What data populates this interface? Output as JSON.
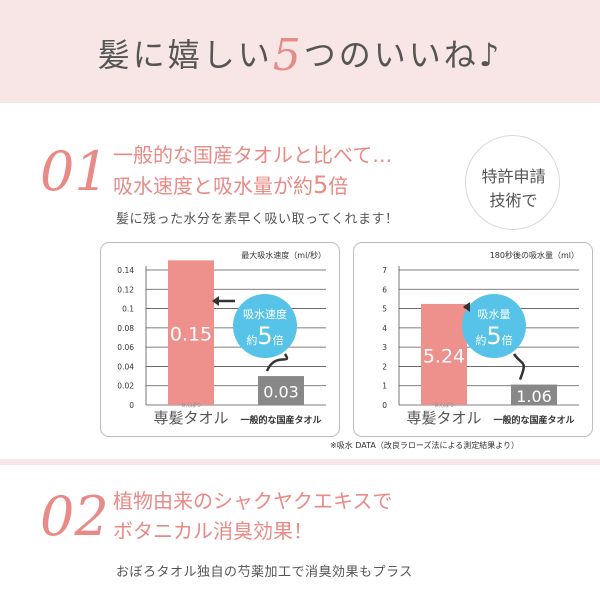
{
  "banner": {
    "title_before": "髪に嬉しい",
    "title_number": "5",
    "title_after": "つのいいね♪"
  },
  "section1": {
    "number": "01",
    "heading_line1": "一般的な国産タオルと比べて…",
    "heading_line2_before": "吸水速度と吸水量が約",
    "heading_line2_number": "5",
    "heading_line2_after": "倍",
    "subtext": "髪に残った水分を素早く吸い取ってくれます！",
    "badge_line1": "特許申請",
    "badge_line2": "技術で"
  },
  "chart_data": [
    {
      "type": "bar",
      "title": "最大吸水速度（ml/秒）",
      "categories": [
        "専髪タオル",
        "一般的な国産タオル"
      ],
      "values": [
        0.15,
        0.03
      ],
      "value_labels": [
        "0.15",
        "0.03"
      ],
      "ylim": [
        0,
        0.14
      ],
      "yticks": [
        "0",
        "0.02",
        "0.04",
        "0.06",
        "0.08",
        "0.1",
        "0.12",
        "0.14"
      ],
      "grid": true,
      "callout_label": "吸水速度",
      "callout_value_prefix": "約",
      "callout_value_number": "5",
      "callout_value_suffix": "倍",
      "category_ruby": "せんぱつ",
      "colors": {
        "bar_primary": "#ee918c",
        "bar_secondary": "#888888",
        "callout": "#57c3e8"
      }
    },
    {
      "type": "bar",
      "title": "180秒後の吸水量（ml）",
      "categories": [
        "専髪タオル",
        "一般的な国産タオル"
      ],
      "values": [
        5.24,
        1.06
      ],
      "value_labels": [
        "5.24",
        "1.06"
      ],
      "ylim": [
        0,
        7
      ],
      "yticks": [
        "0",
        "1",
        "2",
        "3",
        "4",
        "5",
        "6",
        "7"
      ],
      "grid": true,
      "callout_label": "吸水量",
      "callout_value_prefix": "約",
      "callout_value_number": "5",
      "callout_value_suffix": "倍",
      "category_ruby": "せんぱつ",
      "colors": {
        "bar_primary": "#ee918c",
        "bar_secondary": "#888888",
        "callout": "#57c3e8"
      }
    }
  ],
  "chart_note": "※吸水 DATA（改良ラローズ法による測定結果より）",
  "section2": {
    "number": "02",
    "heading_line1": "植物由来のシャクヤクエキスで",
    "heading_line2": "ボタニカル消臭効果！",
    "subtext": "おぼろタオル独自の芍薬加工で消臭効果もプラス"
  }
}
